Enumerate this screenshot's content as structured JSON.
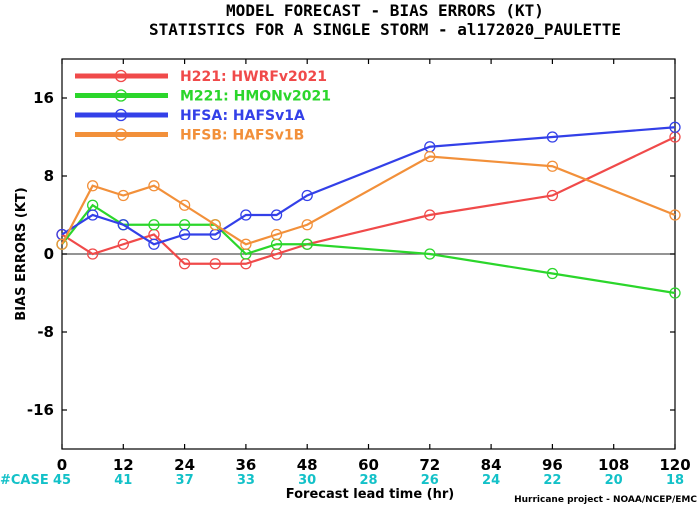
{
  "chart_data": {
    "type": "line",
    "title": "MODEL FORECAST - BIAS ERRORS (KT)",
    "subtitle": "STATISTICS FOR A SINGLE STORM - al172020_PAULETTE",
    "xlabel": "Forecast lead time (hr)",
    "ylabel": "BIAS ERRORS (KT)",
    "xlim": [
      0,
      120
    ],
    "ylim": [
      -20,
      20
    ],
    "x_ticks": [
      0,
      12,
      24,
      36,
      48,
      60,
      72,
      84,
      96,
      108,
      120
    ],
    "y_ticks": [
      -16,
      -8,
      0,
      8,
      16
    ],
    "zero_line": true,
    "grid": false,
    "legend_position": "top-left",
    "case_label": "#CASE",
    "case_counts": [
      {
        "x": 0,
        "n": "45"
      },
      {
        "x": 12,
        "n": "41"
      },
      {
        "x": 24,
        "n": "37"
      },
      {
        "x": 36,
        "n": "33"
      },
      {
        "x": 48,
        "n": "30"
      },
      {
        "x": 60,
        "n": "28"
      },
      {
        "x": 72,
        "n": "26"
      },
      {
        "x": 84,
        "n": "24"
      },
      {
        "x": 96,
        "n": "22"
      },
      {
        "x": 108,
        "n": "20"
      },
      {
        "x": 120,
        "n": "18"
      }
    ],
    "series": [
      {
        "name": "H221: HWRFv2021",
        "color": "#f04a4a",
        "x": [
          0,
          6,
          12,
          18,
          24,
          30,
          36,
          42,
          48,
          72,
          96,
          120
        ],
        "y": [
          2,
          0,
          1,
          2,
          -1,
          -1,
          -1,
          0,
          1,
          4,
          6,
          12
        ]
      },
      {
        "name": "M221: HMONv2021",
        "color": "#2bd62b",
        "x": [
          0,
          6,
          12,
          18,
          24,
          30,
          36,
          42,
          48,
          72,
          96,
          120
        ],
        "y": [
          1,
          5,
          3,
          3,
          3,
          3,
          0,
          1,
          1,
          0,
          -2,
          -4
        ]
      },
      {
        "name": "HFSA: HAFSv1A",
        "color": "#3340e8",
        "x": [
          0,
          6,
          12,
          18,
          24,
          30,
          36,
          42,
          48,
          72,
          96,
          120
        ],
        "y": [
          2,
          4,
          3,
          1,
          2,
          2,
          4,
          4,
          6,
          11,
          12,
          13
        ]
      },
      {
        "name": "HFSB: HAFSv1B",
        "color": "#f2903a",
        "x": [
          0,
          6,
          12,
          18,
          24,
          30,
          36,
          42,
          48,
          72,
          96,
          120
        ],
        "y": [
          1,
          7,
          6,
          7,
          5,
          3,
          1,
          2,
          3,
          10,
          9,
          4
        ]
      }
    ],
    "credit": "Hurricane project - NOAA/NCEP/EMC"
  }
}
